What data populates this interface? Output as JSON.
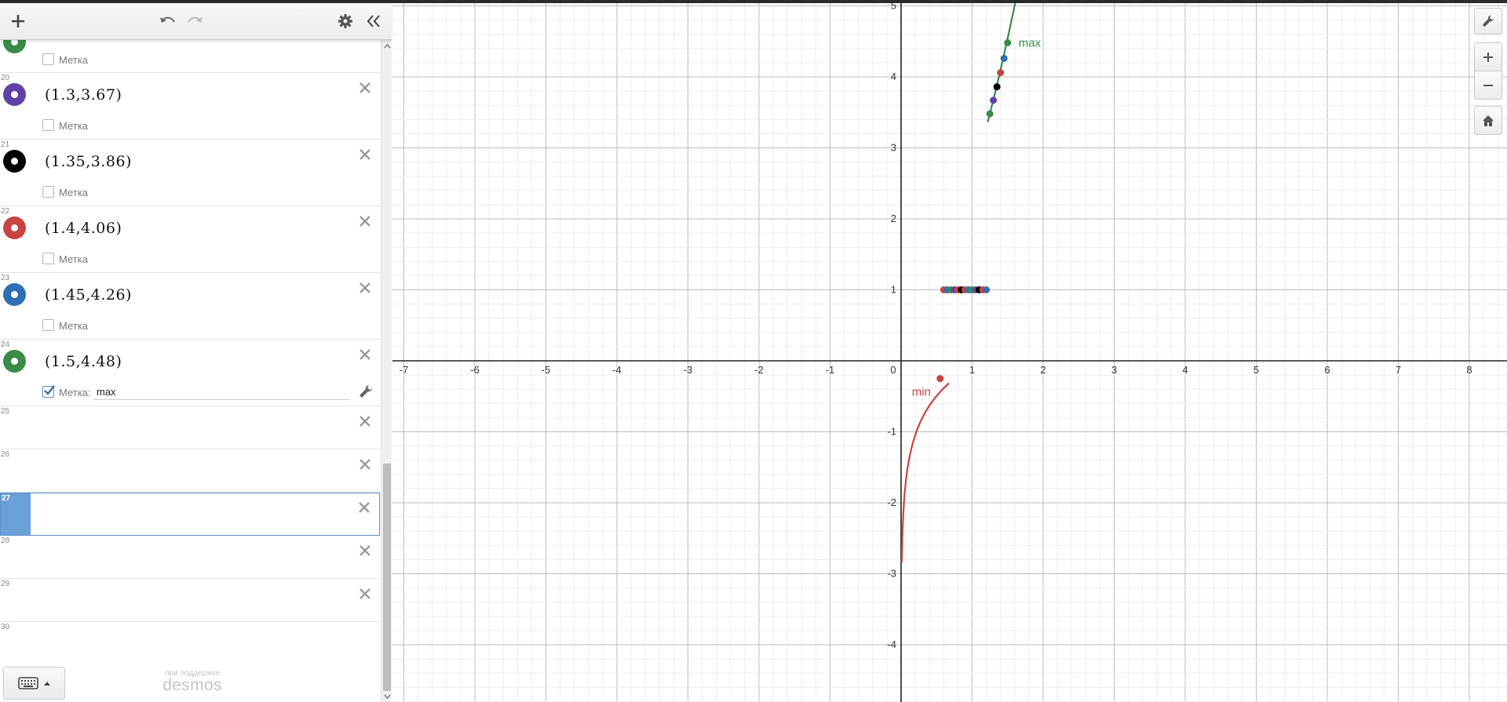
{
  "toolbar": {
    "add_icon": "plus-icon",
    "undo_icon": "undo-icon",
    "redo_icon": "redo-icon",
    "settings_icon": "gear-icon",
    "collapse_icon": "double-chevron-left-icon"
  },
  "expressions": {
    "partial_label": "Метка",
    "items": [
      {
        "num": "20",
        "latex": "(1.3,3.67)",
        "color": "#6042a6",
        "label_text": "Метка"
      },
      {
        "num": "21",
        "latex": "(1.35,3.86)",
        "color": "#000000",
        "label_text": "Метка"
      },
      {
        "num": "22",
        "latex": "(1.4,4.06)",
        "color": "#c74440",
        "label_text": "Метка"
      },
      {
        "num": "23",
        "latex": "(1.45,4.26)",
        "color": "#2d70b3",
        "label_text": "Метка"
      },
      {
        "num": "24",
        "latex": "(1.5,4.48)",
        "color": "#388c46",
        "label_text": "Метка:",
        "label_value": "max"
      }
    ],
    "empty_rows": [
      "25",
      "26",
      "27",
      "28",
      "29",
      "30"
    ],
    "selected_row": "27"
  },
  "footer": {
    "powered_by": "при поддержке",
    "brand": "desmos"
  },
  "graph": {
    "x_ticks": [
      "-7",
      "-6",
      "-5",
      "-4",
      "-3",
      "-2",
      "-1",
      "0",
      "1",
      "2",
      "3",
      "4",
      "5",
      "6",
      "7",
      "8"
    ],
    "y_ticks_pos": [
      "1",
      "2",
      "3",
      "4",
      "5"
    ],
    "y_ticks_neg": [
      "-1",
      "-2",
      "-3",
      "-4"
    ],
    "curve_labels": {
      "max": "max",
      "min": "min"
    },
    "colors": {
      "green": "#388c46",
      "red": "#c74440",
      "blue": "#2d70b3",
      "purple": "#6042a6",
      "black": "#000000"
    },
    "points_max": [
      {
        "x": 1.25,
        "y": 3.48,
        "color": "#388c46"
      },
      {
        "x": 1.3,
        "y": 3.67,
        "color": "#6042a6"
      },
      {
        "x": 1.35,
        "y": 3.86,
        "color": "#000000"
      },
      {
        "x": 1.4,
        "y": 4.06,
        "color": "#c74440"
      },
      {
        "x": 1.45,
        "y": 4.26,
        "color": "#2d70b3"
      },
      {
        "x": 1.5,
        "y": 4.48,
        "color": "#388c46"
      }
    ],
    "min_point": {
      "x": 0.55,
      "y": -0.25,
      "color": "#c74440"
    },
    "row_points": [
      {
        "x": 0.6,
        "color": "#c74440"
      },
      {
        "x": 0.65,
        "color": "#2d70b3"
      },
      {
        "x": 0.7,
        "color": "#388c46"
      },
      {
        "x": 0.75,
        "color": "#6042a6"
      },
      {
        "x": 0.8,
        "color": "#c74440"
      },
      {
        "x": 0.85,
        "color": "#000000"
      },
      {
        "x": 0.9,
        "color": "#c74440"
      },
      {
        "x": 0.95,
        "color": "#2d70b3"
      },
      {
        "x": 1.0,
        "color": "#388c46"
      },
      {
        "x": 1.05,
        "color": "#6042a6"
      },
      {
        "x": 1.1,
        "color": "#000000"
      },
      {
        "x": 1.15,
        "color": "#c74440"
      },
      {
        "x": 1.2,
        "color": "#2d70b3"
      }
    ]
  },
  "graph_controls": {
    "wrench_icon": "wrench-icon",
    "zoom_in_icon": "zoom-in-icon",
    "zoom_out_icon": "zoom-out-icon",
    "home_icon": "home-icon"
  },
  "keyboard": {
    "icon": "keyboard-icon"
  }
}
